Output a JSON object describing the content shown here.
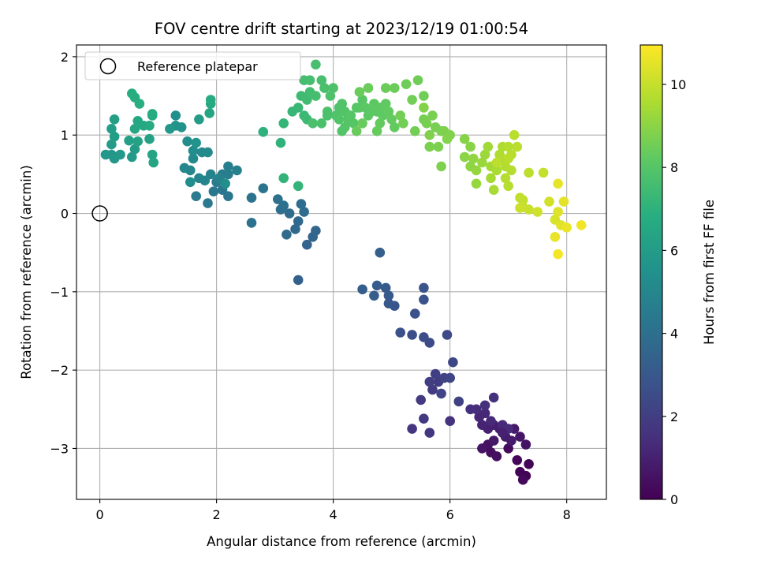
{
  "chart_data": {
    "type": "scatter",
    "title": "FOV centre drift starting at 2023/12/19 01:00:54",
    "xlabel": "Angular distance from reference (arcmin)",
    "ylabel": "Rotation from reference (arcmin)",
    "colorbar_label": "Hours from first FF file",
    "colormap": "viridis",
    "xlim": [
      -0.4,
      8.68
    ],
    "ylim": [
      -3.65,
      2.15
    ],
    "clim": [
      0,
      10.95
    ],
    "xticks": [
      "0",
      "2",
      "4",
      "6",
      "8"
    ],
    "yticks": [
      "−3",
      "−2",
      "−1",
      "0",
      "1",
      "2"
    ],
    "colorbar_ticks": [
      "0",
      "2",
      "4",
      "6",
      "8",
      "10"
    ],
    "grid": true,
    "legend": {
      "location": "upper left",
      "entries": [
        "Reference platepar"
      ]
    },
    "reference_point": {
      "x": 0.0,
      "y": 0.0
    },
    "points": [
      [
        7.3,
        -3.35,
        0.05
      ],
      [
        7.2,
        -3.3,
        0.1
      ],
      [
        7.35,
        -3.2,
        0.15
      ],
      [
        7.15,
        -3.15,
        0.2
      ],
      [
        7.25,
        -3.4,
        0.25
      ],
      [
        7.0,
        -3.0,
        0.35
      ],
      [
        6.8,
        -3.1,
        0.45
      ],
      [
        7.3,
        -2.95,
        0.55
      ],
      [
        7.2,
        -2.85,
        0.65
      ],
      [
        7.1,
        -2.75,
        0.75
      ],
      [
        7.05,
        -2.9,
        0.8
      ],
      [
        6.95,
        -2.85,
        0.85
      ],
      [
        6.85,
        -2.75,
        0.9
      ],
      [
        6.75,
        -2.7,
        0.95
      ],
      [
        6.65,
        -2.75,
        1.0
      ],
      [
        6.55,
        -2.7,
        1.1
      ],
      [
        6.5,
        -2.6,
        1.15
      ],
      [
        6.6,
        -2.55,
        1.2
      ],
      [
        6.7,
        -2.65,
        1.25
      ],
      [
        6.9,
        -2.7,
        1.3
      ],
      [
        7.0,
        -2.75,
        1.35
      ],
      [
        6.45,
        -2.5,
        1.4
      ],
      [
        6.35,
        -2.5,
        1.45
      ],
      [
        6.6,
        -2.45,
        1.5
      ],
      [
        6.75,
        -2.35,
        1.55
      ],
      [
        6.65,
        -2.95,
        0.5
      ],
      [
        6.7,
        -3.05,
        0.4
      ],
      [
        6.55,
        -3.0,
        0.6
      ],
      [
        6.9,
        -2.8,
        1.0
      ],
      [
        6.75,
        -2.9,
        0.7
      ],
      [
        6.0,
        -2.65,
        1.6
      ],
      [
        5.65,
        -2.8,
        1.7
      ],
      [
        5.35,
        -2.75,
        1.75
      ],
      [
        5.55,
        -2.62,
        1.8
      ],
      [
        5.5,
        -2.38,
        1.85
      ],
      [
        5.7,
        -2.25,
        1.9
      ],
      [
        5.8,
        -2.15,
        1.95
      ],
      [
        5.65,
        -2.15,
        2.0
      ],
      [
        5.75,
        -2.05,
        2.05
      ],
      [
        5.9,
        -2.1,
        2.1
      ],
      [
        6.15,
        -2.4,
        2.15
      ],
      [
        5.85,
        -2.3,
        2.2
      ],
      [
        6.0,
        -2.1,
        2.25
      ],
      [
        6.05,
        -1.9,
        2.3
      ],
      [
        5.95,
        -1.55,
        2.4
      ],
      [
        5.65,
        -1.65,
        2.5
      ],
      [
        5.55,
        -1.58,
        2.55
      ],
      [
        5.35,
        -1.55,
        2.6
      ],
      [
        5.15,
        -1.52,
        2.7
      ],
      [
        5.4,
        -1.28,
        2.75
      ],
      [
        5.55,
        -1.1,
        2.8
      ],
      [
        5.55,
        -0.95,
        2.85
      ],
      [
        5.05,
        -1.18,
        2.9
      ],
      [
        4.95,
        -1.15,
        3.0
      ],
      [
        4.95,
        -1.05,
        3.05
      ],
      [
        4.9,
        -0.95,
        3.1
      ],
      [
        4.75,
        -0.92,
        3.15
      ],
      [
        4.7,
        -1.05,
        3.2
      ],
      [
        4.5,
        -0.97,
        3.25
      ],
      [
        4.8,
        -0.5,
        3.3
      ],
      [
        3.4,
        -0.85,
        3.4
      ],
      [
        3.55,
        -0.4,
        3.5
      ],
      [
        3.65,
        -0.3,
        3.55
      ],
      [
        3.7,
        -0.22,
        3.6
      ],
      [
        3.35,
        -0.2,
        3.65
      ],
      [
        3.4,
        -0.1,
        3.7
      ],
      [
        3.2,
        -0.27,
        3.75
      ],
      [
        3.25,
        0.0,
        3.8
      ],
      [
        3.5,
        0.02,
        3.85
      ],
      [
        3.45,
        0.12,
        3.9
      ],
      [
        3.1,
        0.05,
        3.95
      ],
      [
        3.15,
        0.1,
        4.0
      ],
      [
        3.05,
        0.18,
        4.05
      ],
      [
        2.6,
        -0.12,
        4.1
      ],
      [
        2.6,
        0.2,
        4.15
      ],
      [
        2.8,
        0.32,
        4.2
      ],
      [
        2.2,
        0.22,
        4.25
      ],
      [
        2.1,
        0.3,
        4.3
      ],
      [
        1.95,
        0.28,
        4.35
      ],
      [
        1.85,
        0.13,
        4.4
      ],
      [
        1.65,
        0.22,
        4.5
      ],
      [
        2.0,
        0.4,
        4.55
      ],
      [
        2.1,
        0.5,
        4.6
      ],
      [
        2.2,
        0.5,
        4.65
      ],
      [
        2.2,
        0.6,
        4.7
      ],
      [
        2.35,
        0.55,
        4.75
      ],
      [
        2.05,
        0.45,
        4.8
      ],
      [
        1.9,
        0.5,
        4.85
      ],
      [
        1.8,
        0.42,
        4.9
      ],
      [
        1.7,
        0.45,
        4.95
      ],
      [
        1.55,
        0.55,
        5.0
      ],
      [
        1.45,
        0.58,
        5.05
      ],
      [
        1.6,
        0.7,
        5.1
      ],
      [
        1.75,
        0.78,
        5.15
      ],
      [
        1.85,
        0.78,
        5.2
      ],
      [
        1.6,
        0.8,
        5.25
      ],
      [
        1.5,
        0.92,
        5.3
      ],
      [
        1.55,
        0.4,
        5.35
      ],
      [
        2.15,
        0.38,
        5.4
      ],
      [
        1.4,
        1.1,
        5.5
      ],
      [
        1.3,
        1.12,
        5.55
      ],
      [
        1.65,
        0.9,
        5.6
      ],
      [
        0.2,
        0.75,
        5.7
      ],
      [
        0.1,
        0.75,
        5.75
      ],
      [
        0.25,
        0.7,
        5.8
      ],
      [
        0.35,
        0.75,
        5.85
      ],
      [
        0.55,
        0.72,
        5.9
      ],
      [
        0.6,
        0.82,
        5.95
      ],
      [
        0.2,
        0.88,
        6.0
      ],
      [
        0.25,
        0.98,
        6.05
      ],
      [
        0.2,
        1.08,
        6.1
      ],
      [
        0.25,
        1.2,
        6.15
      ],
      [
        0.5,
        0.93,
        6.2
      ],
      [
        0.65,
        0.92,
        6.25
      ],
      [
        0.85,
        0.95,
        6.3
      ],
      [
        0.9,
        0.75,
        6.35
      ],
      [
        0.92,
        0.65,
        6.4
      ],
      [
        0.6,
        1.08,
        6.45
      ],
      [
        0.65,
        1.18,
        6.5
      ],
      [
        0.75,
        1.12,
        6.55
      ],
      [
        0.85,
        1.12,
        6.6
      ],
      [
        0.9,
        1.25,
        6.65
      ],
      [
        0.9,
        1.27,
        6.7
      ],
      [
        0.6,
        1.48,
        6.75
      ],
      [
        0.55,
        1.53,
        6.8
      ],
      [
        0.68,
        1.4,
        6.85
      ],
      [
        1.3,
        1.25,
        5.45
      ],
      [
        1.2,
        1.08,
        5.8
      ],
      [
        1.7,
        1.2,
        6.0
      ],
      [
        1.88,
        1.28,
        6.4
      ],
      [
        1.9,
        1.4,
        6.6
      ],
      [
        1.9,
        1.45,
        6.7
      ],
      [
        2.8,
        1.04,
        7.0
      ],
      [
        3.1,
        0.9,
        7.05
      ],
      [
        3.15,
        0.45,
        7.1
      ],
      [
        3.4,
        0.35,
        7.15
      ],
      [
        3.15,
        1.15,
        7.2
      ],
      [
        3.3,
        1.3,
        7.25
      ],
      [
        3.4,
        1.35,
        7.3
      ],
      [
        3.5,
        1.25,
        7.35
      ],
      [
        3.55,
        1.2,
        7.4
      ],
      [
        3.45,
        1.5,
        7.45
      ],
      [
        3.55,
        1.45,
        7.5
      ],
      [
        3.6,
        1.55,
        7.55
      ],
      [
        3.5,
        1.7,
        7.6
      ],
      [
        3.6,
        1.7,
        7.62
      ],
      [
        3.7,
        1.5,
        7.64
      ],
      [
        3.7,
        1.9,
        7.66
      ],
      [
        3.8,
        1.7,
        7.68
      ],
      [
        3.85,
        1.6,
        7.7
      ],
      [
        3.65,
        1.15,
        7.72
      ],
      [
        3.8,
        1.15,
        7.74
      ],
      [
        3.9,
        1.25,
        7.76
      ],
      [
        3.9,
        1.3,
        7.78
      ],
      [
        3.95,
        1.5,
        7.8
      ],
      [
        4.0,
        1.6,
        7.82
      ],
      [
        4.05,
        1.25,
        7.84
      ],
      [
        4.1,
        1.35,
        7.86
      ],
      [
        4.15,
        1.4,
        7.88
      ],
      [
        4.2,
        1.3,
        7.9
      ],
      [
        4.1,
        1.2,
        7.92
      ],
      [
        4.15,
        1.05,
        7.94
      ],
      [
        4.2,
        1.1,
        7.96
      ],
      [
        4.25,
        1.2,
        7.98
      ],
      [
        4.3,
        1.25,
        8.0
      ],
      [
        4.35,
        1.15,
        8.02
      ],
      [
        4.4,
        1.35,
        8.04
      ],
      [
        4.45,
        1.35,
        8.06
      ],
      [
        4.5,
        1.45,
        8.08
      ],
      [
        4.55,
        1.35,
        8.1
      ],
      [
        4.6,
        1.25,
        8.12
      ],
      [
        4.65,
        1.3,
        8.14
      ],
      [
        4.7,
        1.4,
        8.16
      ],
      [
        4.75,
        1.3,
        8.18
      ],
      [
        4.8,
        1.35,
        8.2
      ],
      [
        4.85,
        1.25,
        8.22
      ],
      [
        4.9,
        1.4,
        8.24
      ],
      [
        4.95,
        1.3,
        8.26
      ],
      [
        5.0,
        1.2,
        8.28
      ],
      [
        5.05,
        1.1,
        8.3
      ],
      [
        4.8,
        1.15,
        8.32
      ],
      [
        4.75,
        1.05,
        8.34
      ],
      [
        4.5,
        1.15,
        8.36
      ],
      [
        4.4,
        1.05,
        8.38
      ],
      [
        4.6,
        1.6,
        8.4
      ],
      [
        4.45,
        1.55,
        8.42
      ],
      [
        4.9,
        1.6,
        8.44
      ],
      [
        5.05,
        1.6,
        8.46
      ],
      [
        5.25,
        1.65,
        8.48
      ],
      [
        5.45,
        1.7,
        8.5
      ],
      [
        5.55,
        1.5,
        8.52
      ],
      [
        5.35,
        1.45,
        8.54
      ],
      [
        5.15,
        1.25,
        8.56
      ],
      [
        5.2,
        1.15,
        8.58
      ],
      [
        5.4,
        1.05,
        8.6
      ],
      [
        5.55,
        1.2,
        8.62
      ],
      [
        5.6,
        1.15,
        8.64
      ],
      [
        5.7,
        1.25,
        8.66
      ],
      [
        5.75,
        1.1,
        8.68
      ],
      [
        5.85,
        1.05,
        8.7
      ],
      [
        5.65,
        0.85,
        8.72
      ],
      [
        5.8,
        0.85,
        8.74
      ],
      [
        5.85,
        0.6,
        8.76
      ],
      [
        5.9,
        1.05,
        8.78
      ],
      [
        6.0,
        1.0,
        8.8
      ],
      [
        5.65,
        1.0,
        8.82
      ],
      [
        5.95,
        0.95,
        8.84
      ],
      [
        5.55,
        1.35,
        8.86
      ],
      [
        6.25,
        0.95,
        8.9
      ],
      [
        6.35,
        0.85,
        8.95
      ],
      [
        6.25,
        0.72,
        9.0
      ],
      [
        6.35,
        0.6,
        9.05
      ],
      [
        6.4,
        0.7,
        9.1
      ],
      [
        6.45,
        0.55,
        9.15
      ],
      [
        6.45,
        0.38,
        9.2
      ],
      [
        6.55,
        0.65,
        9.25
      ],
      [
        6.6,
        0.75,
        9.3
      ],
      [
        6.65,
        0.85,
        9.35
      ],
      [
        6.7,
        0.6,
        9.4
      ],
      [
        6.7,
        0.45,
        9.45
      ],
      [
        6.75,
        0.3,
        9.5
      ],
      [
        6.8,
        0.55,
        9.55
      ],
      [
        6.85,
        0.75,
        9.6
      ],
      [
        6.9,
        0.85,
        9.62
      ],
      [
        6.9,
        0.7,
        9.64
      ],
      [
        6.95,
        0.6,
        9.66
      ],
      [
        7.0,
        0.85,
        9.68
      ],
      [
        6.95,
        0.45,
        9.7
      ],
      [
        7.05,
        0.55,
        9.72
      ],
      [
        7.0,
        0.35,
        9.74
      ],
      [
        7.05,
        0.75,
        9.76
      ],
      [
        7.1,
        1.0,
        9.78
      ],
      [
        7.15,
        0.85,
        9.8
      ],
      [
        7.0,
        0.7,
        9.82
      ],
      [
        6.8,
        0.65,
        9.84
      ],
      [
        7.2,
        0.2,
        9.9
      ],
      [
        7.25,
        0.17,
        9.95
      ],
      [
        7.25,
        0.08,
        10.0
      ],
      [
        7.35,
        0.05,
        10.05
      ],
      [
        7.2,
        0.07,
        10.1
      ],
      [
        7.5,
        0.02,
        10.15
      ],
      [
        7.7,
        0.15,
        10.2
      ],
      [
        7.8,
        -0.08,
        10.3
      ],
      [
        7.85,
        0.02,
        10.4
      ],
      [
        7.9,
        -0.15,
        10.45
      ],
      [
        7.95,
        0.15,
        10.5
      ],
      [
        7.85,
        0.38,
        10.55
      ],
      [
        7.8,
        -0.3,
        10.6
      ],
      [
        8.0,
        -0.18,
        10.65
      ],
      [
        8.25,
        -0.15,
        10.75
      ],
      [
        7.85,
        -0.52,
        10.8
      ],
      [
        7.6,
        0.52,
        10.0
      ],
      [
        7.35,
        0.52,
        9.85
      ]
    ]
  }
}
